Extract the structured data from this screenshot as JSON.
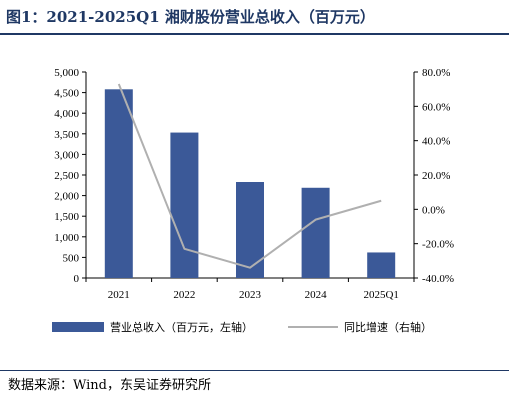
{
  "header": {
    "title": "图1：2021-2025Q1 湘财股份营业总收入（百万元）"
  },
  "footer": {
    "source": "数据来源：Wind，东吴证券研究所"
  },
  "colors": {
    "bar": "#3b5998",
    "line": "#b0b0b0",
    "title": "#1f3864"
  },
  "chart_data": {
    "type": "bar",
    "categories": [
      "2021",
      "2022",
      "2023",
      "2024",
      "2025Q1"
    ],
    "series": [
      {
        "name": "营业总收入（百万元，左轴）",
        "type": "bar",
        "axis": "left",
        "values": [
          4580,
          3530,
          2330,
          2190,
          620
        ]
      },
      {
        "name": "同比增速（右轴）",
        "type": "line",
        "axis": "right",
        "values": [
          73.0,
          -23.0,
          -34.0,
          -6.0,
          5.0
        ]
      }
    ],
    "y_left": {
      "min": 0,
      "max": 5000,
      "step": 500,
      "ticks": [
        "0",
        "500",
        "1,000",
        "1,500",
        "2,000",
        "2,500",
        "3,000",
        "3,500",
        "4,000",
        "4,500",
        "5,000"
      ]
    },
    "y_right": {
      "min": -40,
      "max": 80,
      "step": 20,
      "ticks": [
        "-40.0%",
        "-20.0%",
        "0.0%",
        "20.0%",
        "40.0%",
        "60.0%",
        "80.0%"
      ]
    },
    "legend": {
      "position": "bottom"
    },
    "grid": false
  }
}
